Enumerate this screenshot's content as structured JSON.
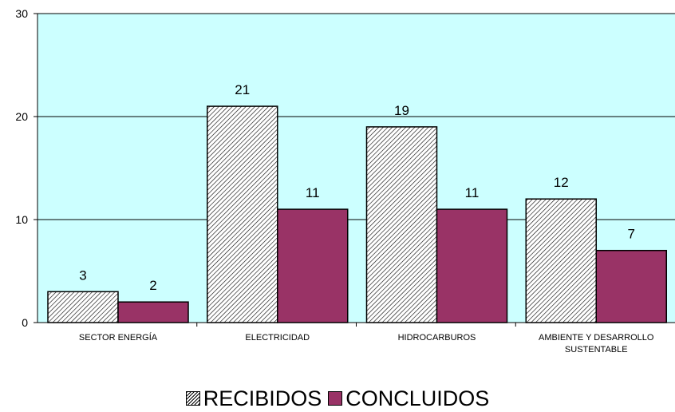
{
  "chart_data": {
    "type": "bar",
    "title": "",
    "xlabel": "",
    "ylabel": "",
    "ylim": [
      0,
      30
    ],
    "yticks": [
      0,
      10,
      20,
      30
    ],
    "grid": true,
    "legend_position": "bottom",
    "plot_background": "#ccffff",
    "categories": [
      [
        "SECTOR ENERGÍA"
      ],
      [
        "ELECTRICIDAD"
      ],
      [
        "HIDROCARBUROS"
      ],
      [
        "AMBIENTE Y DESARROLLO",
        "SUSTENTABLE"
      ]
    ],
    "series": [
      {
        "name": "RECIBIDOS",
        "values": [
          3,
          21,
          19,
          12
        ],
        "color": "#ffffff",
        "pattern": "diagonal-hatch"
      },
      {
        "name": "CONCLUIDOS",
        "values": [
          2,
          11,
          11,
          7
        ],
        "color": "#993366",
        "pattern": "solid"
      }
    ]
  }
}
